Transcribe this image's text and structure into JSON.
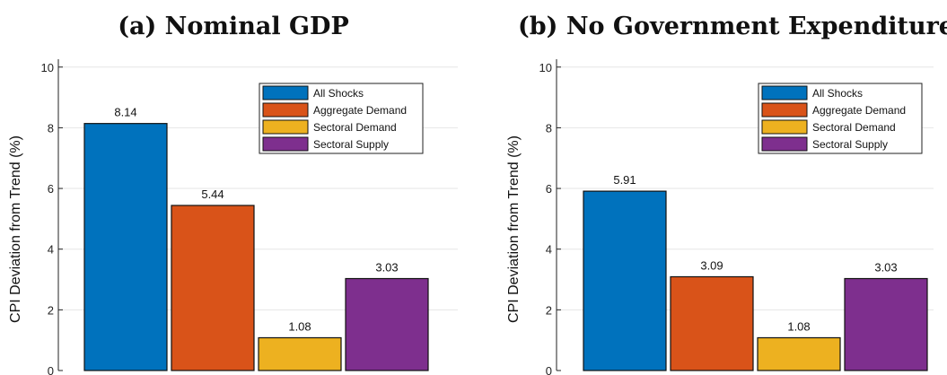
{
  "chart_data": [
    {
      "type": "bar",
      "title": "(a) Nominal GDP",
      "ylabel": "CPI Deviation from Trend (%)",
      "ylim": [
        0,
        10.2
      ],
      "yticks": [
        0,
        2,
        4,
        6,
        8,
        10
      ],
      "grid": true,
      "legend_position": "top-right",
      "categories": [
        "All Shocks",
        "Aggregate Demand",
        "Sectoral Demand",
        "Sectoral Supply"
      ],
      "values": [
        8.14,
        5.44,
        1.08,
        3.03
      ],
      "value_labels": [
        "8.14",
        "5.44",
        "1.08",
        "3.03"
      ],
      "colors": [
        "#0072BD",
        "#D95319",
        "#EDB120",
        "#7E2F8E"
      ]
    },
    {
      "type": "bar",
      "title": "(b) No Government Expenditure",
      "ylabel": "CPI Deviation from Trend (%)",
      "ylim": [
        0,
        10.2
      ],
      "yticks": [
        0,
        2,
        4,
        6,
        8,
        10
      ],
      "grid": true,
      "legend_position": "top-right",
      "categories": [
        "All Shocks",
        "Aggregate Demand",
        "Sectoral Demand",
        "Sectoral Supply"
      ],
      "values": [
        5.91,
        3.09,
        1.08,
        3.03
      ],
      "value_labels": [
        "5.91",
        "3.09",
        "1.08",
        "3.03"
      ],
      "colors": [
        "#0072BD",
        "#D95319",
        "#EDB120",
        "#7E2F8E"
      ]
    }
  ]
}
